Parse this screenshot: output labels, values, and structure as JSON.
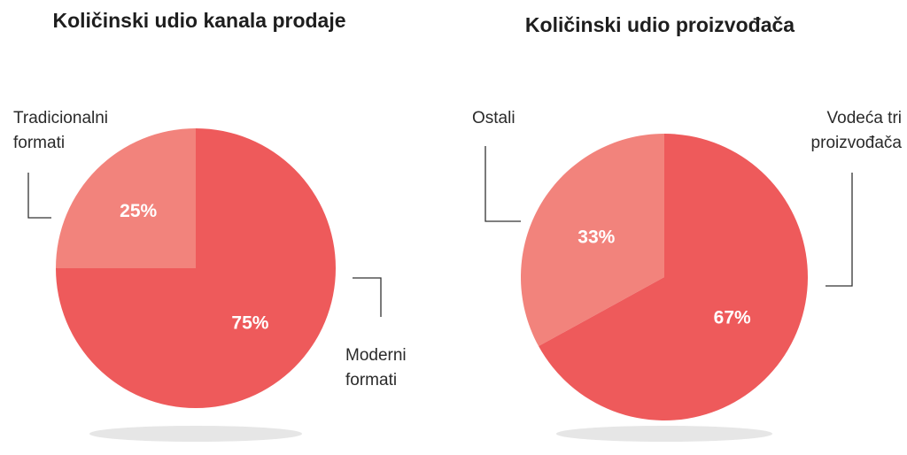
{
  "chart_data": [
    {
      "type": "pie",
      "title": "Količinski udio kanala prodaje",
      "labels": [
        "Tradicionalni formati",
        "Moderni formati"
      ],
      "values": [
        25,
        75
      ],
      "value_labels": [
        "25%",
        "75%"
      ],
      "colors": [
        "#f2837c",
        "#ee5a5b"
      ]
    },
    {
      "type": "pie",
      "title": "Količinski udio proizvođača",
      "labels": [
        "Ostali",
        "Vodeća tri proizvođača"
      ],
      "values": [
        33,
        67
      ],
      "value_labels": [
        "33%",
        "67%"
      ],
      "colors": [
        "#f2837c",
        "#ee5a5b"
      ]
    }
  ],
  "labels": {
    "left_small": [
      "Tradicionalni",
      "formati"
    ],
    "left_large": [
      "Moderni",
      "formati"
    ],
    "right_small": [
      "Ostali"
    ],
    "right_large": [
      "Vodeća tri",
      "proizvođača"
    ]
  },
  "colors": {
    "shadow": "#e6e6e6",
    "leader": "#333333",
    "label_text": "#ffffff"
  }
}
